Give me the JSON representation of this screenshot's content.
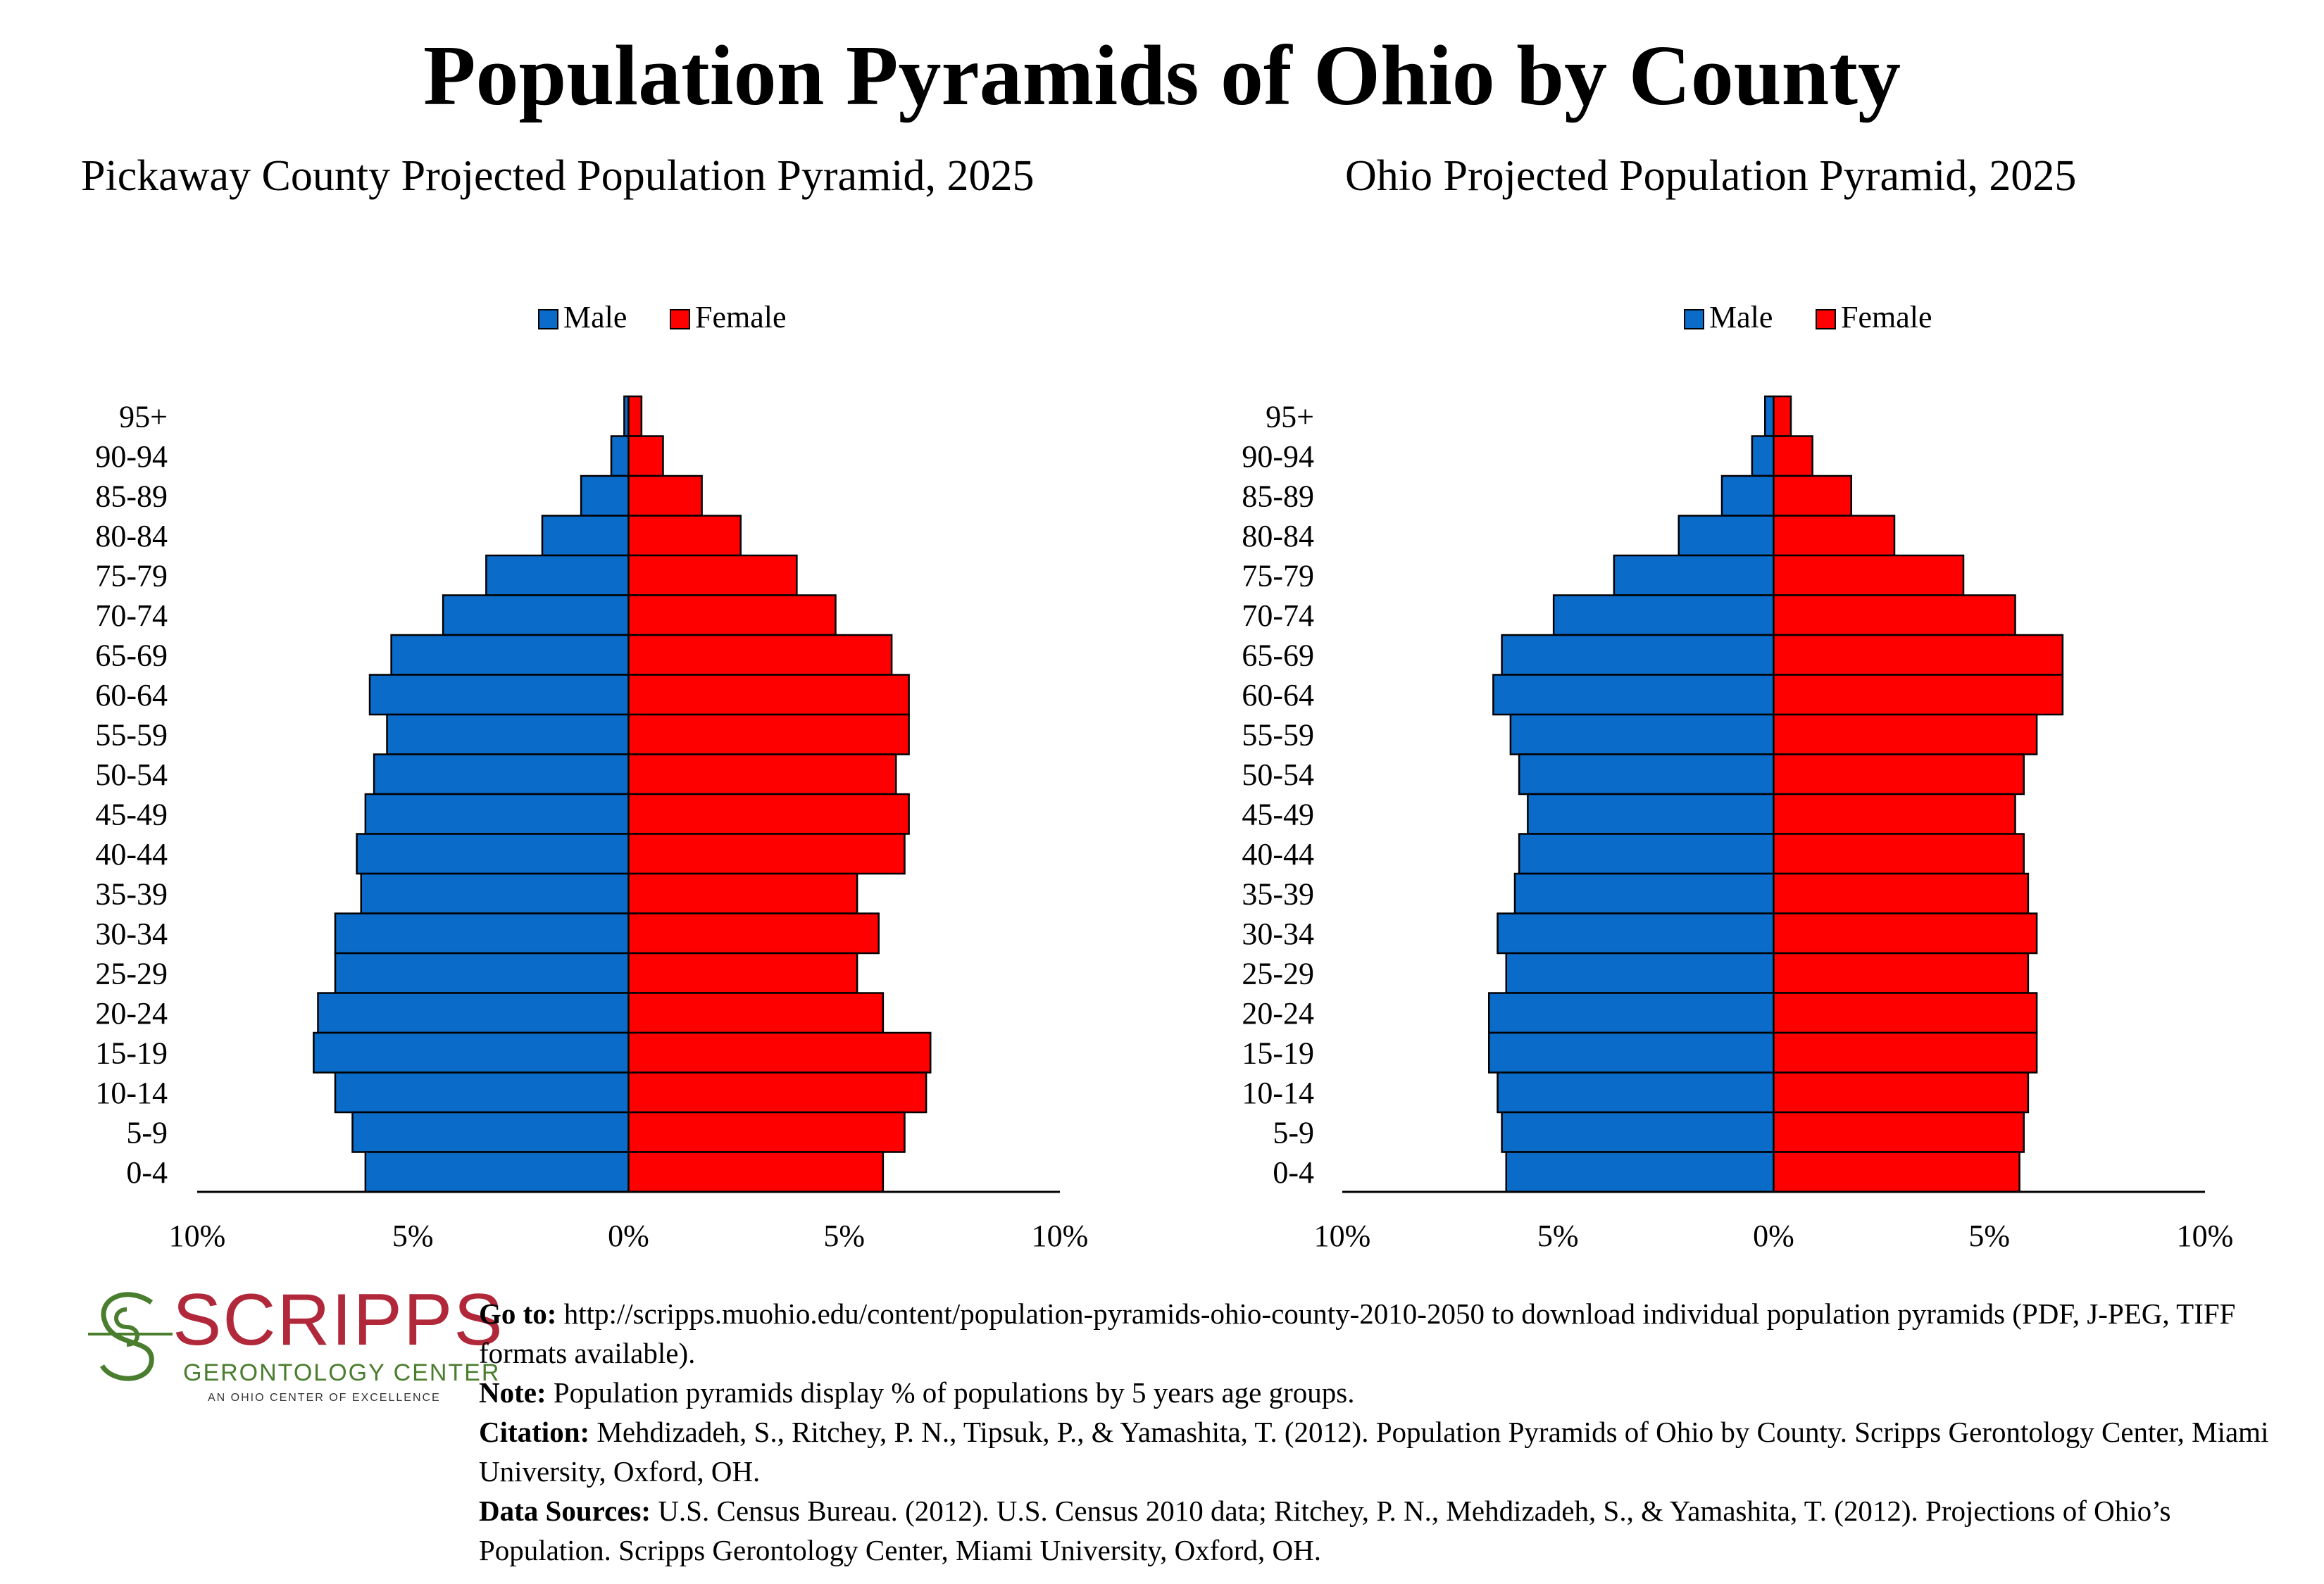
{
  "title": "Population Pyramids of Ohio by County",
  "age_groups": [
    "95+",
    "90-94",
    "85-89",
    "80-84",
    "75-79",
    "70-74",
    "65-69",
    "60-64",
    "55-59",
    "50-54",
    "45-49",
    "40-44",
    "35-39",
    "30-34",
    "25-29",
    "20-24",
    "15-19",
    "10-14",
    "5-9",
    "0-4"
  ],
  "legend": {
    "male": "Male",
    "female": "Female"
  },
  "colors": {
    "male": "#0b6bc8",
    "female": "#ff0000"
  },
  "x_ticks": [
    "10%",
    "5%",
    "0%",
    "5%",
    "10%"
  ],
  "chart_data": [
    {
      "type": "bar",
      "title": "Pickaway County Projected Population Pyramid, 2025",
      "legend_position": "top",
      "xlim": [
        -10,
        10
      ],
      "series": [
        {
          "name": "Male",
          "values": [
            -0.1,
            -0.4,
            -1.1,
            -2.0,
            -3.3,
            -4.3,
            -5.5,
            -6.0,
            -5.6,
            -5.9,
            -6.1,
            -6.3,
            -6.2,
            -6.8,
            -6.8,
            -7.2,
            -7.3,
            -6.8,
            -6.4,
            -6.1
          ]
        },
        {
          "name": "Female",
          "values": [
            0.3,
            0.8,
            1.7,
            2.6,
            3.9,
            4.8,
            6.1,
            6.5,
            6.5,
            6.2,
            6.5,
            6.4,
            5.3,
            5.8,
            5.3,
            5.9,
            7.0,
            6.9,
            6.4,
            5.9
          ]
        }
      ]
    },
    {
      "type": "bar",
      "title": "Ohio Projected Population Pyramid, 2025",
      "legend_position": "top",
      "xlim": [
        -10,
        10
      ],
      "series": [
        {
          "name": "Male",
          "values": [
            -0.2,
            -0.5,
            -1.2,
            -2.2,
            -3.7,
            -5.1,
            -6.3,
            -6.5,
            -6.1,
            -5.9,
            -5.7,
            -5.9,
            -6.0,
            -6.4,
            -6.2,
            -6.6,
            -6.6,
            -6.4,
            -6.3,
            -6.2
          ]
        },
        {
          "name": "Female",
          "values": [
            0.4,
            0.9,
            1.8,
            2.8,
            4.4,
            5.6,
            6.7,
            6.7,
            6.1,
            5.8,
            5.6,
            5.8,
            5.9,
            6.1,
            5.9,
            6.1,
            6.1,
            5.9,
            5.8,
            5.7
          ]
        }
      ]
    }
  ],
  "logo": {
    "name": "SCRIPPS",
    "subtitle": "GERONTOLOGY CENTER",
    "tagline": "AN OHIO CENTER OF EXCELLENCE"
  },
  "notes": {
    "goto_label": "Go to:",
    "goto_text": " http://scripps.muohio.edu/content/population-pyramids-ohio-county-2010-2050 to download individual population pyramids (PDF, J-PEG, TIFF formats available).",
    "note_label": "Note:",
    "note_text": " Population pyramids display % of populations by 5 years age groups.",
    "citation_label": "Citation:",
    "citation_text": " Mehdizadeh, S., Ritchey, P. N., Tipsuk, P., & Yamashita, T. (2012). Population Pyramids of Ohio by County. Scripps Gerontology Center, Miami University, Oxford, OH.",
    "sources_label": "Data Sources:",
    "sources_text": " U.S. Census Bureau. (2012). U.S. Census 2010 data; Ritchey, P. N., Mehdizadeh, S., & Yamashita, T. (2012). Projections of Ohio’s Population. Scripps Gerontology Center, Miami University, Oxford, OH."
  }
}
